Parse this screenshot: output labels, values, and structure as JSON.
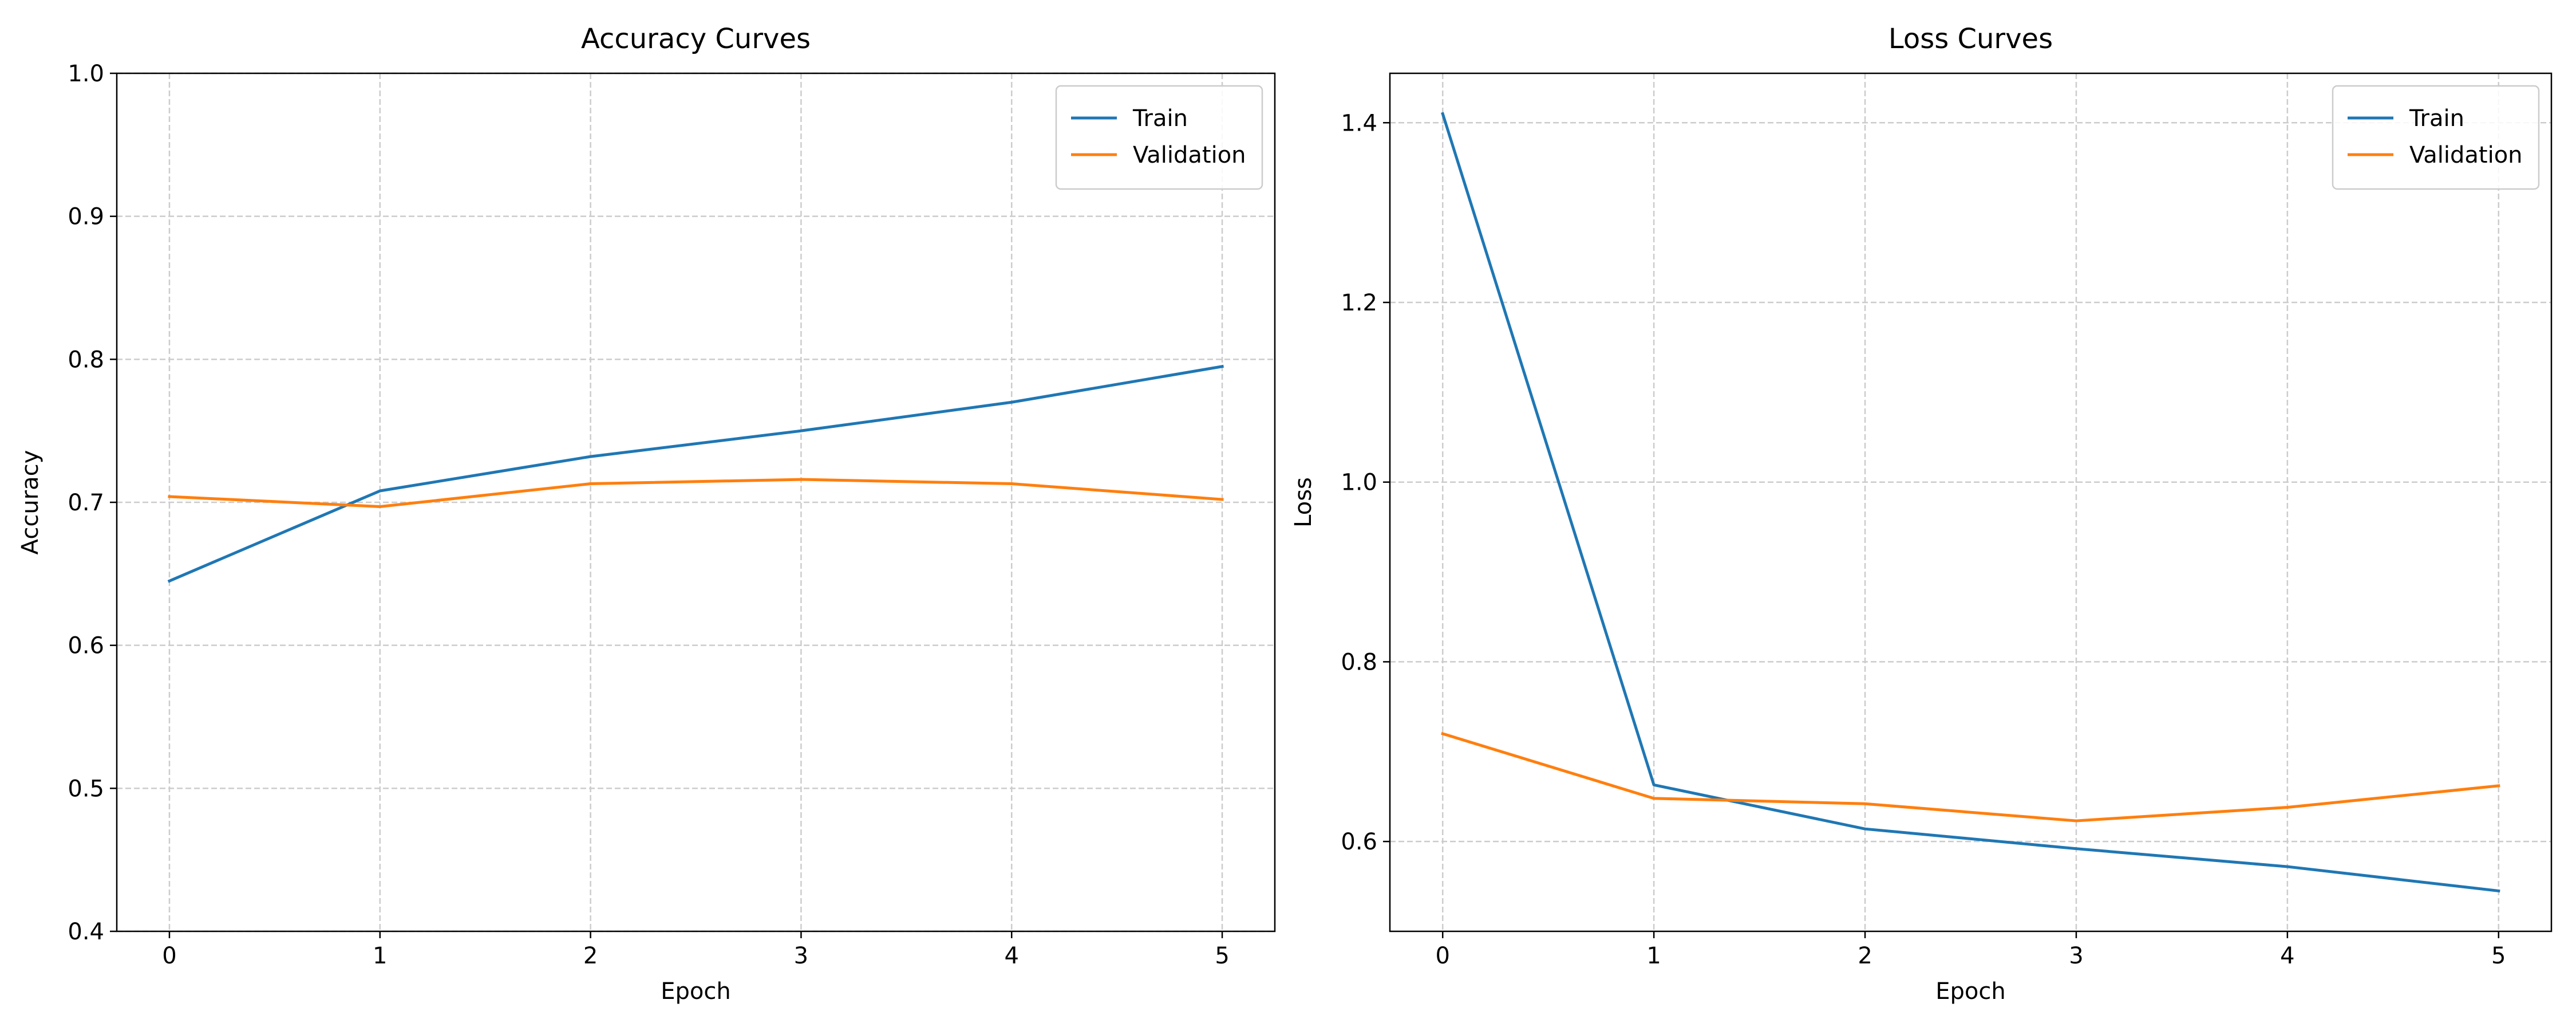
{
  "colors": {
    "train": "#1f77b4",
    "validation": "#ff7f0e",
    "grid": "#cccccc",
    "axis": "#000000"
  },
  "chart_data": [
    {
      "type": "line",
      "title": "Accuracy Curves",
      "xlabel": "Epoch",
      "ylabel": "Accuracy",
      "xlim": [
        -0.25,
        5.25
      ],
      "ylim": [
        0.4,
        1.0
      ],
      "xticks": [
        "0",
        "1",
        "2",
        "3",
        "4",
        "5"
      ],
      "yticks": [
        "0.4",
        "0.5",
        "0.6",
        "0.7",
        "0.8",
        "0.9",
        "1.0"
      ],
      "grid": true,
      "grid_style": "dashed",
      "legend_position": "top-right",
      "x": [
        0,
        1,
        2,
        3,
        4,
        5
      ],
      "series": [
        {
          "name": "Train",
          "color": "#1f77b4",
          "values": [
            0.645,
            0.708,
            0.732,
            0.75,
            0.77,
            0.795
          ]
        },
        {
          "name": "Validation",
          "color": "#ff7f0e",
          "values": [
            0.704,
            0.697,
            0.713,
            0.716,
            0.713,
            0.702
          ]
        }
      ]
    },
    {
      "type": "line",
      "title": "Loss Curves",
      "xlabel": "Epoch",
      "ylabel": "Loss",
      "xlim": [
        -0.25,
        5.25
      ],
      "ylim": [
        0.5,
        1.455
      ],
      "xticks": [
        "0",
        "1",
        "2",
        "3",
        "4",
        "5"
      ],
      "yticks": [
        "0.6",
        "0.8",
        "1.0",
        "1.2",
        "1.4"
      ],
      "grid": true,
      "grid_style": "dashed",
      "legend_position": "top-right",
      "x": [
        0,
        1,
        2,
        3,
        4,
        5
      ],
      "series": [
        {
          "name": "Train",
          "color": "#1f77b4",
          "values": [
            1.41,
            0.663,
            0.614,
            0.592,
            0.572,
            0.545
          ]
        },
        {
          "name": "Validation",
          "color": "#ff7f0e",
          "values": [
            0.72,
            0.648,
            0.642,
            0.623,
            0.638,
            0.662
          ]
        }
      ]
    }
  ]
}
